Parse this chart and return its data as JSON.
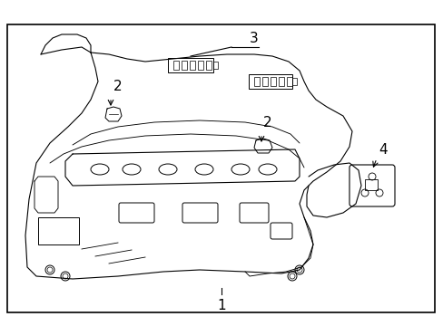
{
  "background_color": "#ffffff",
  "border_color": "#000000",
  "line_color": "#000000",
  "label_1": "1",
  "label_2": "2",
  "label_3": "3",
  "label_4": "4",
  "label_fontsize": 11,
  "fig_width": 4.89,
  "fig_height": 3.6,
  "dpi": 100
}
